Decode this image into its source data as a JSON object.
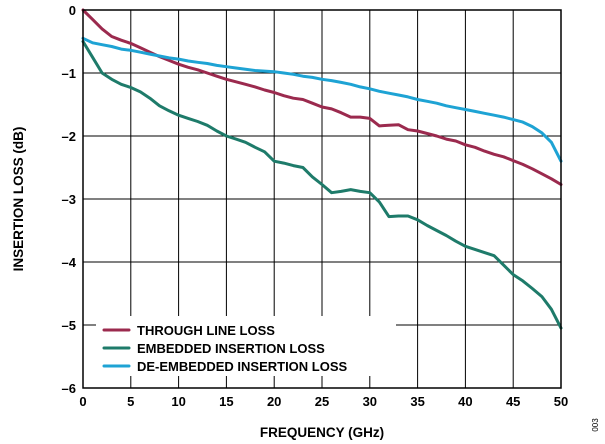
{
  "chart_data": {
    "type": "line",
    "xlabel": "FREQUENCY (GHz)",
    "ylabel": "INSERTION LOSS (dB)",
    "xlim": [
      0,
      50
    ],
    "ylim": [
      -6,
      0
    ],
    "xticks": [
      0,
      5,
      10,
      15,
      20,
      25,
      30,
      35,
      40,
      45,
      50
    ],
    "yticks": [
      0,
      -1,
      -2,
      -3,
      -4,
      -5,
      -6
    ],
    "xtick_labels": [
      "0",
      "5",
      "10",
      "15",
      "20",
      "25",
      "30",
      "35",
      "40",
      "45",
      "50"
    ],
    "ytick_labels": [
      "0",
      "–1",
      "–2",
      "–3",
      "–4",
      "–5",
      "–6"
    ],
    "grid": true,
    "legend_position": "bottom-left",
    "series": [
      {
        "name": "THROUGH LINE LOSS",
        "color": "#9b2a4e",
        "x": [
          0,
          1,
          2,
          3,
          4,
          5,
          6,
          7,
          8,
          9,
          10,
          11,
          12,
          13,
          14,
          15,
          16,
          17,
          18,
          19,
          20,
          21,
          22,
          23,
          24,
          25,
          26,
          27,
          28,
          29,
          30,
          31,
          32,
          33,
          34,
          35,
          36,
          37,
          38,
          39,
          40,
          41,
          42,
          43,
          44,
          45,
          46,
          47,
          48,
          49,
          50
        ],
        "y": [
          0.0,
          -0.15,
          -0.3,
          -0.42,
          -0.48,
          -0.53,
          -0.6,
          -0.67,
          -0.74,
          -0.8,
          -0.86,
          -0.91,
          -0.95,
          -1.0,
          -1.05,
          -1.1,
          -1.14,
          -1.18,
          -1.22,
          -1.27,
          -1.31,
          -1.36,
          -1.4,
          -1.42,
          -1.48,
          -1.54,
          -1.57,
          -1.63,
          -1.7,
          -1.7,
          -1.72,
          -1.84,
          -1.83,
          -1.82,
          -1.9,
          -1.92,
          -1.96,
          -2.0,
          -2.05,
          -2.08,
          -2.14,
          -2.18,
          -2.24,
          -2.29,
          -2.33,
          -2.39,
          -2.45,
          -2.52,
          -2.6,
          -2.68,
          -2.77
        ]
      },
      {
        "name": "EMBEDDED INSERTION LOSS",
        "color": "#1e7b6a",
        "x": [
          0,
          1,
          2,
          3,
          4,
          5,
          6,
          7,
          8,
          9,
          10,
          11,
          12,
          13,
          14,
          15,
          16,
          17,
          18,
          19,
          20,
          21,
          22,
          23,
          24,
          25,
          26,
          27,
          28,
          29,
          30,
          31,
          32,
          33,
          34,
          35,
          36,
          37,
          38,
          39,
          40,
          41,
          42,
          43,
          44,
          45,
          46,
          47,
          48,
          49,
          50
        ],
        "y": [
          -0.5,
          -0.75,
          -1.0,
          -1.1,
          -1.18,
          -1.23,
          -1.3,
          -1.4,
          -1.52,
          -1.6,
          -1.67,
          -1.72,
          -1.77,
          -1.83,
          -1.92,
          -2.0,
          -2.05,
          -2.1,
          -2.18,
          -2.25,
          -2.4,
          -2.43,
          -2.47,
          -2.5,
          -2.65,
          -2.77,
          -2.9,
          -2.88,
          -2.85,
          -2.88,
          -2.9,
          -3.05,
          -3.28,
          -3.27,
          -3.27,
          -3.33,
          -3.42,
          -3.5,
          -3.58,
          -3.67,
          -3.75,
          -3.8,
          -3.85,
          -3.9,
          -4.05,
          -4.2,
          -4.3,
          -4.42,
          -4.55,
          -4.75,
          -5.05
        ]
      },
      {
        "name": "DE-EMBEDDED INSERTION LOSS",
        "color": "#1ea3d4",
        "x": [
          0,
          1,
          2,
          3,
          4,
          5,
          6,
          7,
          8,
          9,
          10,
          11,
          12,
          13,
          14,
          15,
          16,
          17,
          18,
          19,
          20,
          21,
          22,
          23,
          24,
          25,
          26,
          27,
          28,
          29,
          30,
          31,
          32,
          33,
          34,
          35,
          36,
          37,
          38,
          39,
          40,
          41,
          42,
          43,
          44,
          45,
          46,
          47,
          48,
          49,
          50
        ],
        "y": [
          -0.45,
          -0.52,
          -0.55,
          -0.58,
          -0.62,
          -0.64,
          -0.67,
          -0.7,
          -0.73,
          -0.76,
          -0.78,
          -0.81,
          -0.83,
          -0.85,
          -0.88,
          -0.9,
          -0.92,
          -0.94,
          -0.96,
          -0.97,
          -0.98,
          -1.0,
          -1.02,
          -1.05,
          -1.07,
          -1.1,
          -1.12,
          -1.15,
          -1.18,
          -1.22,
          -1.25,
          -1.29,
          -1.32,
          -1.35,
          -1.38,
          -1.42,
          -1.45,
          -1.48,
          -1.52,
          -1.55,
          -1.58,
          -1.61,
          -1.64,
          -1.67,
          -1.7,
          -1.74,
          -1.78,
          -1.85,
          -1.95,
          -2.1,
          -2.4
        ]
      }
    ]
  },
  "figure_id": "003"
}
